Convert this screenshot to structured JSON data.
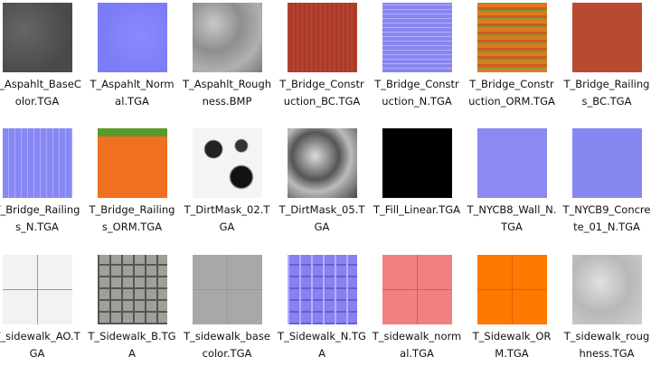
{
  "files": [
    {
      "name": "T_Aspahlt_BaseColor.TGA"
    },
    {
      "name": "T_Aspahlt_Normal.TGA"
    },
    {
      "name": "T_Aspahlt_Roughness.BMP"
    },
    {
      "name": "T_Bridge_Construction_BC.TGA"
    },
    {
      "name": "T_Bridge_Construction_N.TGA"
    },
    {
      "name": "T_Bridge_Construction_ORM.TGA"
    },
    {
      "name": "T_Bridge_Railings_BC.TGA"
    },
    {
      "name": "T_Bridge_Railings_N.TGA"
    },
    {
      "name": "T_Bridge_Railings_ORM.TGA"
    },
    {
      "name": "T_DirtMask_02.TGA"
    },
    {
      "name": "T_DirtMask_05.TGA"
    },
    {
      "name": "T_Fill_Linear.TGA"
    },
    {
      "name": "T_NYCB8_Wall_N.TGA"
    },
    {
      "name": "T_NYCB9_Concrete_01_N.TGA"
    },
    {
      "name": "T_sidewalk_AO.TGA"
    },
    {
      "name": "T_Sidewalk_B.TGA"
    },
    {
      "name": "T_sidewalk_basecolor.TGA"
    },
    {
      "name": "T_Sidewalk_N.TGA"
    },
    {
      "name": "T_sidewalk_normal.TGA"
    },
    {
      "name": "T_Sidewalk_ORM.TGA"
    },
    {
      "name": "T_sidewalk_roughness.TGA"
    }
  ]
}
